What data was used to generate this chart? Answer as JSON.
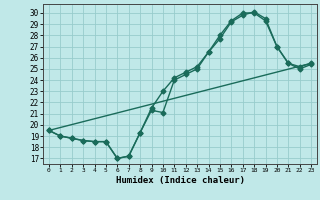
{
  "xlabel": "Humidex (Indice chaleur)",
  "bg_color": "#c0e8e8",
  "grid_color": "#98cccc",
  "line_color": "#1a6b5a",
  "xlim": [
    -0.5,
    23.5
  ],
  "ylim": [
    16.5,
    30.8
  ],
  "xticks": [
    0,
    1,
    2,
    3,
    4,
    5,
    6,
    7,
    8,
    9,
    10,
    11,
    12,
    13,
    14,
    15,
    16,
    17,
    18,
    19,
    20,
    21,
    22,
    23
  ],
  "yticks": [
    17,
    18,
    19,
    20,
    21,
    22,
    23,
    24,
    25,
    26,
    27,
    28,
    29,
    30
  ],
  "line1_x": [
    0,
    1,
    2,
    3,
    4,
    5,
    6,
    7,
    8,
    9,
    10,
    11,
    12,
    13,
    14,
    15,
    16,
    17,
    18,
    19,
    20,
    21,
    22,
    23
  ],
  "line1_y": [
    19.5,
    19.0,
    18.8,
    18.6,
    18.5,
    18.5,
    17.0,
    17.2,
    19.3,
    21.5,
    23.0,
    24.2,
    24.7,
    25.2,
    26.5,
    28.0,
    29.3,
    30.0,
    30.0,
    29.3,
    27.0,
    25.5,
    25.2,
    25.5
  ],
  "line2_x": [
    0,
    1,
    2,
    3,
    4,
    5,
    6,
    7,
    8,
    9,
    10,
    11,
    12,
    13,
    14,
    15,
    16,
    17,
    18,
    19,
    20,
    21,
    22,
    23
  ],
  "line2_y": [
    19.5,
    19.0,
    18.8,
    18.6,
    18.5,
    18.5,
    17.0,
    17.2,
    19.3,
    21.3,
    21.1,
    24.0,
    24.5,
    25.0,
    26.5,
    27.7,
    29.2,
    29.8,
    30.1,
    29.5,
    27.0,
    25.5,
    25.0,
    25.4
  ],
  "line3_x": [
    0,
    23
  ],
  "line3_y": [
    19.5,
    25.5
  ],
  "marker_size": 2.5,
  "linewidth": 1.0
}
